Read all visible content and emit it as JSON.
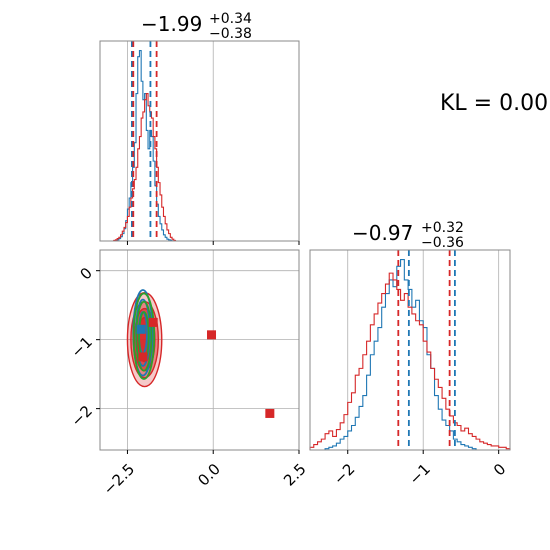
{
  "annotation": {
    "kl_text": "KL = 0.00"
  },
  "colors": {
    "blue": "#1f77b4",
    "red": "#d62728",
    "green": "#2ca02c",
    "grid": "#b0b0b0"
  },
  "chart_data": [
    {
      "type": "histogram",
      "panel": "top-left",
      "title": {
        "median": "−1.99",
        "plus": "+0.34",
        "minus": "−0.38"
      },
      "xlim": [
        -3.3,
        2.5
      ],
      "x_ticks": [
        -2.5,
        0.0,
        2.5
      ],
      "bin_edges_start": -2.95,
      "bin_width": 0.05,
      "series": [
        {
          "color": "blue",
          "counts": [
            0,
            0,
            1,
            2,
            4,
            7,
            12,
            20,
            33,
            52,
            70,
            95,
            120,
            160,
            240,
            300,
            310,
            260,
            230,
            240,
            180,
            150,
            180,
            170,
            130,
            90,
            60,
            40,
            28,
            18,
            10,
            6,
            3,
            2,
            1,
            0
          ]
        },
        {
          "color": "red",
          "counts": [
            0,
            1,
            2,
            4,
            6,
            10,
            16,
            22,
            30,
            40,
            55,
            70,
            85,
            100,
            120,
            150,
            170,
            200,
            210,
            230,
            240,
            220,
            210,
            200,
            170,
            150,
            120,
            95,
            75,
            55,
            40,
            28,
            18,
            12,
            6,
            3,
            1,
            0
          ]
        }
      ],
      "quantile_lines": [
        {
          "color": "blue",
          "x": -2.37
        },
        {
          "color": "blue",
          "x": -1.83
        },
        {
          "color": "red",
          "x": -2.33
        },
        {
          "color": "red",
          "x": -1.65
        }
      ]
    },
    {
      "type": "histogram",
      "panel": "bottom-right",
      "title": {
        "median": "−0.97",
        "plus": "+0.32",
        "minus": "−0.36"
      },
      "xlim": [
        -2.5,
        0.15
      ],
      "x_ticks": [
        -2,
        -1,
        0
      ],
      "x_tick_labels": [
        "−2",
        "−1",
        "0"
      ],
      "bin_edges_start": -2.5,
      "bin_width": 0.05,
      "series": [
        {
          "color": "blue",
          "counts": [
            0,
            0,
            0,
            0,
            1,
            2,
            3,
            5,
            8,
            10,
            14,
            18,
            24,
            32,
            40,
            55,
            70,
            80,
            90,
            105,
            115,
            125,
            120,
            135,
            140,
            125,
            118,
            105,
            110,
            95,
            90,
            70,
            60,
            40,
            30,
            22,
            18,
            14,
            8,
            6,
            4,
            3,
            2,
            1,
            0,
            0,
            0,
            0,
            0,
            0,
            0,
            0,
            0
          ]
        },
        {
          "color": "red",
          "counts": [
            2,
            4,
            6,
            8,
            12,
            14,
            10,
            15,
            20,
            26,
            35,
            42,
            55,
            60,
            70,
            80,
            92,
            100,
            108,
            115,
            122,
            130,
            125,
            118,
            110,
            115,
            105,
            100,
            95,
            92,
            80,
            72,
            60,
            52,
            46,
            38,
            30,
            25,
            20,
            18,
            14,
            16,
            12,
            10,
            8,
            6,
            5,
            4,
            3,
            3,
            2,
            2,
            1
          ]
        }
      ],
      "quantile_lines": [
        {
          "color": "red",
          "x": -1.33
        },
        {
          "color": "blue",
          "x": -1.19
        },
        {
          "color": "red",
          "x": -0.65
        },
        {
          "color": "blue",
          "x": -0.58
        }
      ]
    },
    {
      "type": "contour",
      "panel": "bottom-left",
      "xlim": [
        -3.3,
        2.5
      ],
      "ylim": [
        -2.6,
        0.3
      ],
      "x_ticks": [
        -2.5,
        0.0,
        2.5
      ],
      "x_tick_labels": [
        "−2.5",
        "0.0",
        "2.5"
      ],
      "y_ticks": [
        0,
        -1,
        -2
      ],
      "y_tick_labels": [
        "0",
        "−1",
        "−2"
      ],
      "contour_sets": [
        {
          "color": "red",
          "filled": true,
          "cx": -2.0,
          "cy": -1.0,
          "levels": [
            [
              0.5,
              0.68
            ],
            [
              0.4,
              0.55
            ],
            [
              0.3,
              0.45
            ],
            [
              0.2,
              0.32
            ]
          ]
        },
        {
          "color": "blue",
          "filled": false,
          "cx": -2.05,
          "cy": -0.9,
          "levels": [
            [
              0.28,
              0.62
            ],
            [
              0.2,
              0.48
            ],
            [
              0.12,
              0.3
            ]
          ]
        },
        {
          "color": "green",
          "filled": false,
          "cx": -2.02,
          "cy": -0.95,
          "levels": [
            [
              0.3,
              0.62
            ],
            [
              0.22,
              0.5
            ],
            [
              0.14,
              0.35
            ]
          ]
        }
      ],
      "markers": [
        {
          "color": "red",
          "x": -1.75,
          "y": -0.75
        },
        {
          "color": "red",
          "x": -2.05,
          "y": -1.25
        },
        {
          "color": "red",
          "x": -0.05,
          "y": -0.93
        },
        {
          "color": "red",
          "x": 1.65,
          "y": -2.07
        },
        {
          "color": "blue",
          "x": -2.1,
          "y": -0.85
        }
      ]
    }
  ]
}
